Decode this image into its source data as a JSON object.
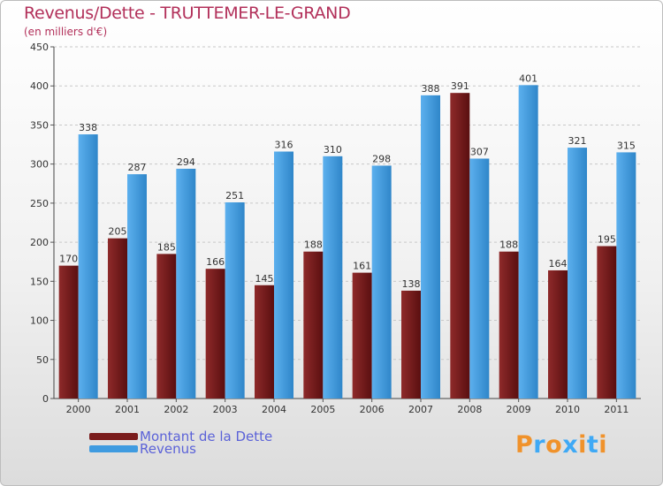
{
  "title": "Revenus/Dette - TRUTTEMER-LE-GRAND",
  "subtitle": "(en milliers d'€)",
  "logo": {
    "text": "Proxiti",
    "colors": [
      "#f0922b",
      "#3fa9f5",
      "#f0922b",
      "#3fa9f5",
      "#f0922b",
      "#3fa9f5",
      "#f0922b"
    ]
  },
  "colors": {
    "dette": "#7a1c1c",
    "revenus": "#3f9be0",
    "title": "#b2305a",
    "legend_text": "#5b62d8"
  },
  "chart_data": {
    "type": "bar",
    "title": "Revenus/Dette - TRUTTEMER-LE-GRAND",
    "ylabel": "(en milliers d'€)",
    "xlabel": "",
    "ylim": [
      0,
      450
    ],
    "yticks": [
      "0",
      "50",
      "100",
      "150",
      "200",
      "250",
      "300",
      "350",
      "400",
      "450"
    ],
    "grid": true,
    "legend_position": "bottom-left",
    "categories": [
      "2000",
      "2001",
      "2002",
      "2003",
      "2004",
      "2005",
      "2006",
      "2007",
      "2008",
      "2009",
      "2010",
      "2011"
    ],
    "series": [
      {
        "name": "Montant de la Dette",
        "color": "#7a1c1c",
        "values": [
          170,
          205,
          185,
          166,
          145,
          188,
          161,
          138,
          391,
          188,
          164,
          195
        ]
      },
      {
        "name": "Revenus",
        "color": "#3f9be0",
        "values": [
          338,
          287,
          294,
          251,
          316,
          310,
          298,
          388,
          307,
          401,
          321,
          315
        ]
      }
    ]
  }
}
